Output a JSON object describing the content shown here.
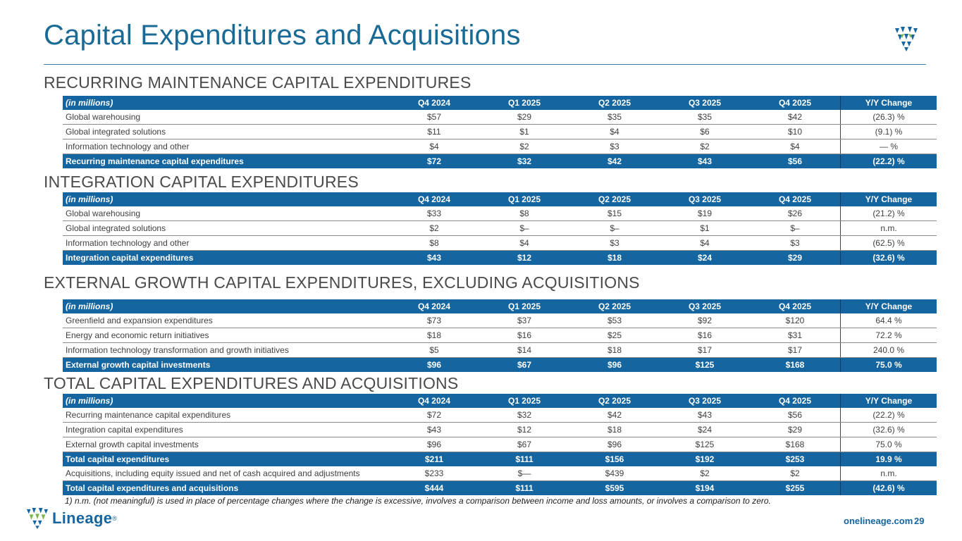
{
  "title": "Capital Expenditures and Acquisitions",
  "columns": [
    "(in millions)",
    "Q4 2024",
    "Q1 2025",
    "Q2 2025",
    "Q3 2025",
    "Q4 2025",
    "Y/Y  Change"
  ],
  "sections": [
    {
      "heading": "RECURRING MAINTENANCE CAPITAL EXPENDITURES",
      "rows": [
        {
          "label": "Global warehousing",
          "values": [
            "$57",
            "$29",
            "$35",
            "$35",
            "$42",
            "(26.3) %"
          ]
        },
        {
          "label": "Global integrated solutions",
          "values": [
            "$11",
            "$1",
            "$4",
            "$6",
            "$10",
            "(9.1) %"
          ]
        },
        {
          "label": "Information technology and other",
          "values": [
            "$4",
            "$2",
            "$3",
            "$2",
            "$4",
            "— %"
          ]
        }
      ],
      "total": {
        "label": "Recurring maintenance capital expenditures",
        "values": [
          "$72",
          "$32",
          "$42",
          "$43",
          "$56",
          "(22.2) %"
        ]
      }
    },
    {
      "heading": "INTEGRATION CAPITAL EXPENDITURES",
      "rows": [
        {
          "label": "Global warehousing",
          "values": [
            "$33",
            "$8",
            "$15",
            "$19",
            "$26",
            "(21.2) %"
          ]
        },
        {
          "label": "Global integrated solutions",
          "values": [
            "$2",
            "$–",
            "$–",
            "$1",
            "$–",
            "n.m."
          ]
        },
        {
          "label": "Information technology and other",
          "values": [
            "$8",
            "$4",
            "$3",
            "$4",
            "$3",
            "(62.5) %"
          ]
        }
      ],
      "total": {
        "label": "Integration capital expenditures",
        "values": [
          "$43",
          "$12",
          "$18",
          "$24",
          "$29",
          "(32.6) %"
        ]
      }
    },
    {
      "heading": "EXTERNAL GROWTH CAPITAL EXPENDITURES, EXCLUDING ACQUISITIONS",
      "rows": [
        {
          "label": "Greenfield and expansion expenditures",
          "values": [
            "$73",
            "$37",
            "$53",
            "$92",
            "$120",
            "64.4 %"
          ]
        },
        {
          "label": "Energy and economic return initiatives",
          "values": [
            "$18",
            "$16",
            "$25",
            "$16",
            "$31",
            "72.2 %"
          ]
        },
        {
          "label": "Information technology transformation and growth initiatives",
          "values": [
            "$5",
            "$14",
            "$18",
            "$17",
            "$17",
            "240.0 %"
          ]
        }
      ],
      "total": {
        "label": "External growth capital investments",
        "values": [
          "$96",
          "$67",
          "$96",
          "$125",
          "$168",
          "75.0 %"
        ]
      }
    },
    {
      "heading": "TOTAL CAPITAL EXPENDITURES AND ACQUISITIONS",
      "rows": [
        {
          "label": "Recurring maintenance capital expenditures",
          "values": [
            "$72",
            "$32",
            "$42",
            "$43",
            "$56",
            "(22.2) %"
          ]
        },
        {
          "label": "Integration capital expenditures",
          "values": [
            "$43",
            "$12",
            "$18",
            "$24",
            "$29",
            "(32.6) %"
          ]
        },
        {
          "label": "External growth capital investments",
          "values": [
            "$96",
            "$67",
            "$96",
            "$125",
            "$168",
            "75.0 %"
          ]
        }
      ],
      "subtotal": {
        "label": "Total capital expenditures",
        "values": [
          "$211",
          "$111",
          "$156",
          "$192",
          "$253",
          "19.9 %"
        ]
      },
      "extra_row": {
        "label": "Acquisitions, including equity issued and net of cash acquired and adjustments",
        "values": [
          "$233",
          "$—",
          "$439",
          "$2",
          "$2",
          "n.m."
        ]
      },
      "total": {
        "label": "Total capital expenditures and acquisitions",
        "values": [
          "$444",
          "$111",
          "$595",
          "$194",
          "$255",
          "(42.6) %"
        ]
      }
    }
  ],
  "footnote": "1) n.m. (not meaningful) is used in place of percentage changes where the change is excessive, involves a comparison between income and loss amounts, or involves a comparison to zero.",
  "brand": {
    "name": "Lineage",
    "reg": "®",
    "website": "onelineage.com",
    "page_number": "29",
    "color": "#1565a0",
    "accent": "#7ab648"
  }
}
